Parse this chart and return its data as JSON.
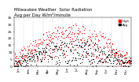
{
  "title": "Milwaukee Weather  Solar Radiation\nAvg per Day W/m²/minute",
  "title_fontsize": 4.0,
  "background_color": "#ffffff",
  "plot_bg_color": "#ffffff",
  "grid_color": "#aaaaaa",
  "red_color": "#ff0000",
  "black_color": "#000000",
  "ylim": [
    0,
    35
  ],
  "yticks": [
    0,
    5,
    10,
    15,
    20,
    25,
    30,
    35
  ],
  "ytick_fontsize": 3.2,
  "xtick_fontsize": 2.8,
  "n_points": 365,
  "vline_positions": [
    31,
    59,
    90,
    120,
    151,
    181,
    212,
    243,
    273,
    304,
    334
  ],
  "legend_label_black": "Avg",
  "legend_label_red": "High",
  "dot_size": 0.8,
  "months": [
    "Jan",
    "Feb",
    "Mar",
    "Apr",
    "May",
    "Jun",
    "Jul",
    "Aug",
    "Sep",
    "Oct",
    "Nov",
    "Dec"
  ],
  "month_starts": [
    0,
    31,
    59,
    90,
    120,
    151,
    181,
    212,
    243,
    273,
    304,
    334
  ]
}
